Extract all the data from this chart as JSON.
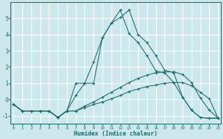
{
  "xlabel": "Humidex (Indice chaleur)",
  "bg_color": "#cce8ec",
  "grid_color": "#ffffff",
  "line_color": "#1a6b6b",
  "series": [
    {
      "x": [
        0,
        1,
        2,
        3,
        4,
        5,
        6,
        7,
        8,
        9,
        10,
        11,
        12,
        13,
        14,
        15,
        16,
        17,
        18,
        19,
        20,
        21,
        22,
        23
      ],
      "y": [
        -0.3,
        -0.7,
        -0.7,
        -0.7,
        -0.7,
        -1.1,
        -0.7,
        -0.7,
        -0.5,
        -0.3,
        -0.15,
        0.05,
        0.25,
        0.5,
        0.65,
        0.8,
        0.9,
        1.0,
        1.05,
        1.05,
        0.85,
        0.45,
        0.05,
        -1.15
      ]
    },
    {
      "x": [
        0,
        1,
        2,
        3,
        4,
        5,
        6,
        7,
        8,
        9,
        10,
        11,
        12,
        13,
        14,
        15,
        16,
        17,
        18,
        19,
        20,
        21,
        22,
        23
      ],
      "y": [
        -0.3,
        -0.7,
        -0.7,
        -0.7,
        -0.7,
        -1.1,
        -0.7,
        -0.7,
        -0.4,
        -0.15,
        0.15,
        0.45,
        0.75,
        1.05,
        1.3,
        1.5,
        1.65,
        1.7,
        1.7,
        1.55,
        1.05,
        0.1,
        -0.65,
        -1.15
      ]
    },
    {
      "x": [
        0,
        1,
        2,
        3,
        4,
        5,
        6,
        7,
        8,
        9,
        10,
        11,
        12,
        13,
        14,
        15,
        16,
        17,
        18,
        19,
        20,
        21,
        22,
        23
      ],
      "y": [
        -0.3,
        -0.7,
        -0.7,
        -0.7,
        -0.7,
        -1.1,
        -0.7,
        1.0,
        1.0,
        1.0,
        3.8,
        4.7,
        5.05,
        5.5,
        4.0,
        3.5,
        2.7,
        1.8,
        1.65,
        0.15,
        -0.65,
        -1.1,
        -1.15,
        -1.15
      ]
    },
    {
      "x": [
        0,
        1,
        2,
        3,
        4,
        5,
        6,
        7,
        8,
        9,
        10,
        11,
        12,
        13,
        14,
        15,
        16,
        17,
        18,
        19,
        20,
        21,
        22,
        23
      ],
      "y": [
        -0.3,
        -0.7,
        -0.7,
        -0.7,
        -0.7,
        -1.1,
        -0.7,
        0.25,
        1.0,
        2.3,
        3.8,
        4.7,
        5.5,
        4.05,
        3.5,
        2.7,
        1.75,
        1.65,
        1.05,
        0.15,
        -0.65,
        -1.1,
        -1.15,
        -1.15
      ]
    }
  ],
  "xlim": [
    0,
    23
  ],
  "ylim": [
    -1.5,
    6.0
  ],
  "yticks": [
    -1,
    0,
    1,
    2,
    3,
    4,
    5
  ],
  "xticks": [
    0,
    1,
    2,
    3,
    4,
    5,
    6,
    7,
    8,
    9,
    10,
    11,
    12,
    13,
    14,
    15,
    16,
    17,
    18,
    19,
    20,
    21,
    22,
    23
  ]
}
